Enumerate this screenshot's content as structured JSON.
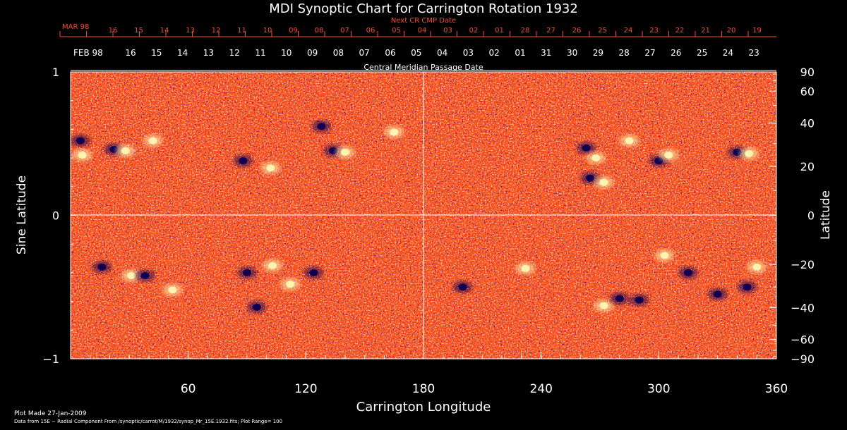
{
  "chart_data": {
    "type": "heatmap",
    "title": "MDI Synoptic Chart for Carrington Rotation 1932",
    "xlabel": "Carrington Longitude",
    "ylabel_left": "Sine Latitude",
    "ylabel_right": "Latitude",
    "xlim": [
      0,
      360
    ],
    "ylim": [
      -1,
      1
    ],
    "x_ticks": [
      60,
      120,
      180,
      240,
      300,
      360
    ],
    "y_ticks_left": [
      1,
      0,
      -1
    ],
    "y_tick_labels_left": [
      "1",
      "0",
      "−1"
    ],
    "y_ticks_right_deg": [
      90,
      60,
      40,
      20,
      0,
      -20,
      -40,
      -60,
      -90
    ],
    "y_tick_labels_right": [
      "90",
      "60",
      "40",
      "20",
      "0",
      "−20",
      "−40",
      "−60",
      "−90"
    ],
    "grid": {
      "vertical_at": 180,
      "horizontal_at": 0
    },
    "colors": {
      "background": "#ff4a10",
      "positive": "#fff3b0",
      "negative": "#120050",
      "grid": "#ffffff",
      "top_axis": "#ff4a2a"
    },
    "top_axis": {
      "title": "Next CR CMP Date",
      "month_label": "MAR 98",
      "dates": [
        "16",
        "15",
        "14",
        "13",
        "12",
        "11",
        "10",
        "09",
        "08",
        "07",
        "06",
        "05",
        "04",
        "03",
        "02",
        "01",
        "28",
        "27",
        "26",
        "25",
        "24",
        "23",
        "22",
        "21",
        "20",
        "19"
      ]
    },
    "mid_axis": {
      "title": "Central Meridian Passage Date",
      "month_label": "FEB 98",
      "dates": [
        "16",
        "15",
        "14",
        "13",
        "12",
        "11",
        "10",
        "09",
        "08",
        "07",
        "06",
        "05",
        "04",
        "03",
        "02",
        "01",
        "31",
        "30",
        "29",
        "28",
        "27",
        "26",
        "25",
        "24",
        "23"
      ]
    },
    "active_regions": [
      {
        "lon": 5,
        "sinlat": 0.52,
        "polarity": "negative"
      },
      {
        "lon": 6,
        "sinlat": 0.42,
        "polarity": "positive"
      },
      {
        "lon": 22,
        "sinlat": 0.46,
        "polarity": "negative"
      },
      {
        "lon": 28,
        "sinlat": 0.45,
        "polarity": "positive"
      },
      {
        "lon": 42,
        "sinlat": 0.52,
        "polarity": "positive"
      },
      {
        "lon": 88,
        "sinlat": 0.38,
        "polarity": "negative"
      },
      {
        "lon": 102,
        "sinlat": 0.33,
        "polarity": "positive"
      },
      {
        "lon": 134,
        "sinlat": 0.45,
        "polarity": "negative"
      },
      {
        "lon": 140,
        "sinlat": 0.44,
        "polarity": "positive"
      },
      {
        "lon": 128,
        "sinlat": 0.62,
        "polarity": "negative"
      },
      {
        "lon": 165,
        "sinlat": 0.58,
        "polarity": "positive"
      },
      {
        "lon": 263,
        "sinlat": 0.47,
        "polarity": "negative"
      },
      {
        "lon": 268,
        "sinlat": 0.4,
        "polarity": "positive"
      },
      {
        "lon": 265,
        "sinlat": 0.26,
        "polarity": "negative"
      },
      {
        "lon": 272,
        "sinlat": 0.23,
        "polarity": "positive"
      },
      {
        "lon": 285,
        "sinlat": 0.52,
        "polarity": "positive"
      },
      {
        "lon": 300,
        "sinlat": 0.38,
        "polarity": "negative"
      },
      {
        "lon": 305,
        "sinlat": 0.42,
        "polarity": "positive"
      },
      {
        "lon": 340,
        "sinlat": 0.44,
        "polarity": "negative"
      },
      {
        "lon": 346,
        "sinlat": 0.43,
        "polarity": "positive"
      },
      {
        "lon": 16,
        "sinlat": -0.36,
        "polarity": "negative"
      },
      {
        "lon": 31,
        "sinlat": -0.42,
        "polarity": "positive"
      },
      {
        "lon": 38,
        "sinlat": -0.42,
        "polarity": "negative"
      },
      {
        "lon": 52,
        "sinlat": -0.52,
        "polarity": "positive"
      },
      {
        "lon": 90,
        "sinlat": -0.4,
        "polarity": "negative"
      },
      {
        "lon": 95,
        "sinlat": -0.64,
        "polarity": "negative"
      },
      {
        "lon": 103,
        "sinlat": -0.35,
        "polarity": "positive"
      },
      {
        "lon": 112,
        "sinlat": -0.48,
        "polarity": "positive"
      },
      {
        "lon": 124,
        "sinlat": -0.4,
        "polarity": "negative"
      },
      {
        "lon": 200,
        "sinlat": -0.5,
        "polarity": "negative"
      },
      {
        "lon": 232,
        "sinlat": -0.37,
        "polarity": "positive"
      },
      {
        "lon": 272,
        "sinlat": -0.63,
        "polarity": "positive"
      },
      {
        "lon": 280,
        "sinlat": -0.58,
        "polarity": "negative"
      },
      {
        "lon": 290,
        "sinlat": -0.59,
        "polarity": "negative"
      },
      {
        "lon": 303,
        "sinlat": -0.28,
        "polarity": "positive"
      },
      {
        "lon": 315,
        "sinlat": -0.4,
        "polarity": "negative"
      },
      {
        "lon": 330,
        "sinlat": -0.55,
        "polarity": "negative"
      },
      {
        "lon": 345,
        "sinlat": -0.5,
        "polarity": "negative"
      },
      {
        "lon": 350,
        "sinlat": -0.36,
        "polarity": "positive"
      }
    ]
  },
  "footer": {
    "plot_made": "Plot Made 27-Jan-2009",
    "data_source": "Data from 15E − Radial Component From /synoptic/carrot/M/1932/synop_Mr_15E.1932.fits; Plot Range= 100"
  }
}
